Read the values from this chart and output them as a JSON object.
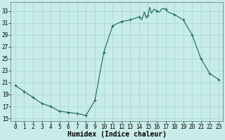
{
  "title": "",
  "xlabel": "Humidex (Indice chaleur)",
  "ylabel": "",
  "background_color": "#c8ece8",
  "grid_color": "#a8d8d4",
  "line_color": "#1a6655",
  "marker_color": "#1a6655",
  "x_values": [
    0,
    1,
    2,
    3,
    4,
    5,
    6,
    7,
    8,
    9,
    10,
    11,
    12,
    13,
    14,
    14.3,
    14.6,
    14.8,
    15.0,
    15.2,
    15.4,
    15.7,
    16.0,
    16.3,
    16.6,
    17.0,
    17.3,
    17.6,
    18,
    19,
    20,
    21,
    22,
    23
  ],
  "y_values": [
    20.5,
    19.5,
    18.5,
    17.5,
    17.0,
    16.2,
    16.0,
    15.8,
    15.5,
    18.0,
    26.0,
    30.5,
    31.2,
    31.5,
    32.0,
    31.5,
    32.8,
    31.8,
    32.2,
    33.6,
    32.6,
    33.3,
    33.0,
    32.8,
    33.4,
    33.3,
    32.8,
    32.6,
    32.4,
    31.5,
    29.0,
    25.0,
    22.5,
    21.5
  ],
  "marker_x": [
    0,
    1,
    2,
    3,
    4,
    5,
    6,
    7,
    8,
    9,
    10,
    11,
    12,
    13,
    14,
    15,
    16,
    17,
    18,
    19,
    20,
    21,
    22,
    23
  ],
  "marker_y": [
    20.5,
    19.5,
    18.5,
    17.5,
    17.0,
    16.2,
    16.0,
    15.8,
    15.5,
    18.0,
    26.0,
    30.5,
    31.2,
    31.5,
    32.0,
    32.2,
    33.0,
    33.3,
    32.4,
    31.5,
    29.0,
    25.0,
    22.5,
    21.5
  ],
  "xlim": [
    -0.5,
    23.5
  ],
  "ylim": [
    14.5,
    34.5
  ],
  "yticks": [
    15,
    17,
    19,
    21,
    23,
    25,
    27,
    29,
    31,
    33
  ],
  "xticks": [
    0,
    1,
    2,
    3,
    4,
    5,
    6,
    7,
    8,
    9,
    10,
    11,
    12,
    13,
    14,
    15,
    16,
    17,
    18,
    19,
    20,
    21,
    22,
    23
  ],
  "tick_fontsize": 5.5,
  "xlabel_fontsize": 7.0,
  "font_family": "monospace"
}
